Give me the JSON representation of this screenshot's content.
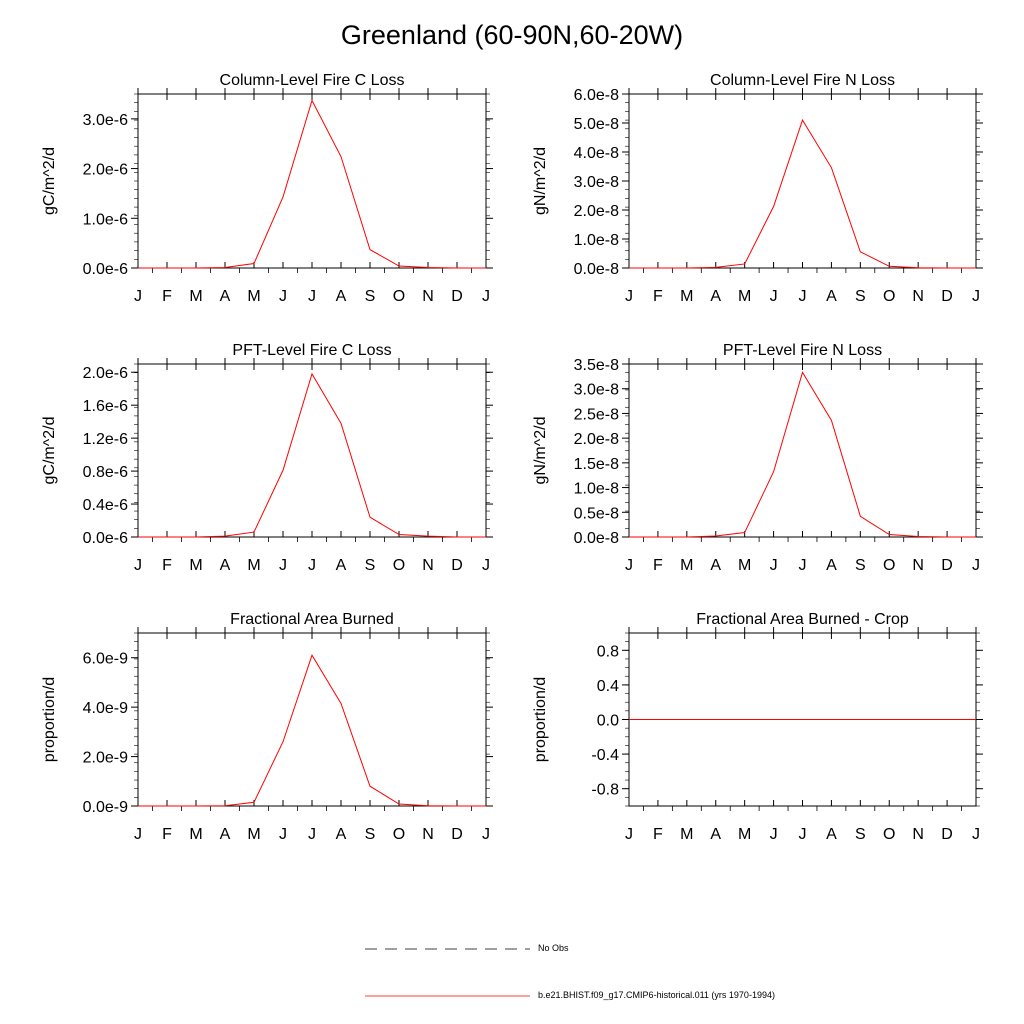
{
  "figure": {
    "title": "Greenland (60-90N,60-20W)",
    "legend": [
      {
        "label": "No Obs",
        "style": "dashed",
        "color": "#000000"
      },
      {
        "label": "b.e21.BHIST.f09_g17.CMIP6-historical.011 (yrs 1970-1994)",
        "style": "solid",
        "color": "#ff0000"
      }
    ]
  },
  "chart_data": [
    {
      "type": "line",
      "title": "Column-Level Fire C Loss",
      "ylabel": "gC/m^2/d",
      "x": [
        "J",
        "F",
        "M",
        "A",
        "M",
        "J",
        "J",
        "A",
        "S",
        "O",
        "N",
        "D",
        "J"
      ],
      "ylim": [
        0,
        3.5e-06
      ],
      "yticks": [
        0,
        1e-06,
        2e-06,
        3e-06
      ],
      "ytick_labels": [
        "0.0e-6",
        "1.0e-6",
        "2.0e-6",
        "3.0e-6"
      ],
      "minor_yticks": [
        5e-07,
        1.5e-06,
        2.5e-06,
        3.5e-06
      ],
      "series": [
        {
          "color": "#ff0000",
          "values": [
            0,
            0,
            0,
            1e-08,
            9e-08,
            1.43e-06,
            3.37e-06,
            2.24e-06,
            3.7e-07,
            4e-08,
            1e-08,
            0,
            0
          ]
        }
      ]
    },
    {
      "type": "line",
      "title": "Column-Level Fire N Loss",
      "ylabel": "gN/m^2/d",
      "x": [
        "J",
        "F",
        "M",
        "A",
        "M",
        "J",
        "J",
        "A",
        "S",
        "O",
        "N",
        "D",
        "J"
      ],
      "ylim": [
        0,
        6e-08
      ],
      "yticks": [
        0,
        1e-08,
        2e-08,
        3e-08,
        4e-08,
        5e-08,
        6e-08
      ],
      "ytick_labels": [
        "0.0e-8",
        "1.0e-8",
        "2.0e-8",
        "3.0e-8",
        "4.0e-8",
        "5.0e-8",
        "6.0e-8"
      ],
      "minor_yticks": [
        5e-09,
        1.5e-08,
        2.5e-08,
        3.5e-08,
        4.5e-08,
        5.5e-08
      ],
      "series": [
        {
          "color": "#ff0000",
          "values": [
            0,
            0,
            0,
            2e-10,
            1.4e-09,
            2.12e-08,
            5.1e-08,
            3.46e-08,
            5.6e-09,
            6e-10,
            1e-10,
            0,
            0
          ]
        }
      ]
    },
    {
      "type": "line",
      "title": "PFT-Level Fire C Loss",
      "ylabel": "gC/m^2/d",
      "x": [
        "J",
        "F",
        "M",
        "A",
        "M",
        "J",
        "J",
        "A",
        "S",
        "O",
        "N",
        "D",
        "J"
      ],
      "ylim": [
        0,
        2.1e-06
      ],
      "yticks": [
        0,
        4e-07,
        8e-07,
        1.2e-06,
        1.6e-06,
        2e-06
      ],
      "ytick_labels": [
        "0.0e-6",
        "0.4e-6",
        "0.8e-6",
        "1.2e-6",
        "1.6e-6",
        "2.0e-6"
      ],
      "minor_yticks": [
        2e-07,
        6e-07,
        1e-06,
        1.4e-06,
        1.8e-06
      ],
      "series": [
        {
          "color": "#ff0000",
          "values": [
            0,
            0,
            0,
            1e-08,
            6e-08,
            8.1e-07,
            1.98e-06,
            1.38e-06,
            2.4e-07,
            3e-08,
            1e-08,
            0,
            0
          ]
        }
      ]
    },
    {
      "type": "line",
      "title": "PFT-Level Fire N Loss",
      "ylabel": "gN/m^2/d",
      "x": [
        "J",
        "F",
        "M",
        "A",
        "M",
        "J",
        "J",
        "A",
        "S",
        "O",
        "N",
        "D",
        "J"
      ],
      "ylim": [
        0,
        3.5e-08
      ],
      "yticks": [
        0,
        5e-09,
        1e-08,
        1.5e-08,
        2e-08,
        2.5e-08,
        3e-08,
        3.5e-08
      ],
      "ytick_labels": [
        "0.0e-8",
        "0.5e-8",
        "1.0e-8",
        "1.5e-8",
        "2.0e-8",
        "2.5e-8",
        "3.0e-8",
        "3.5e-8"
      ],
      "minor_yticks": [],
      "series": [
        {
          "color": "#ff0000",
          "values": [
            0,
            0,
            0,
            2e-10,
            9e-10,
            1.32e-08,
            3.33e-08,
            2.36e-08,
            4.2e-09,
            5e-10,
            1e-10,
            0,
            0
          ]
        }
      ]
    },
    {
      "type": "line",
      "title": "Fractional Area Burned",
      "ylabel": "proportion/d",
      "x": [
        "J",
        "F",
        "M",
        "A",
        "M",
        "J",
        "J",
        "A",
        "S",
        "O",
        "N",
        "D",
        "J"
      ],
      "ylim": [
        0,
        7e-09
      ],
      "yticks": [
        0,
        2e-09,
        4e-09,
        6e-09
      ],
      "ytick_labels": [
        "0.0e-9",
        "2.0e-9",
        "4.0e-9",
        "6.0e-9"
      ],
      "minor_yticks": [
        1e-09,
        3e-09,
        5e-09,
        7e-09
      ],
      "series": [
        {
          "color": "#ff0000",
          "values": [
            0,
            0,
            0,
            1e-11,
            1.5e-10,
            2.6e-09,
            6.1e-09,
            4.15e-09,
            8e-10,
            8e-11,
            1e-11,
            0,
            0
          ]
        }
      ]
    },
    {
      "type": "line",
      "title": "Fractional Area Burned - Crop",
      "ylabel": "proportion/d",
      "x": [
        "J",
        "F",
        "M",
        "A",
        "M",
        "J",
        "J",
        "A",
        "S",
        "O",
        "N",
        "D",
        "J"
      ],
      "ylim": [
        -1,
        1
      ],
      "yticks": [
        -0.8,
        -0.4,
        0.0,
        0.4,
        0.8
      ],
      "ytick_labels": [
        "-0.8",
        "-0.4",
        "0.0",
        "0.4",
        "0.8"
      ],
      "minor_yticks": [
        -1.0,
        -0.6,
        -0.2,
        0.2,
        0.6,
        1.0
      ],
      "series": [
        {
          "color": "#ff0000",
          "values": [
            0,
            0,
            0,
            0,
            0,
            0,
            0,
            0,
            0,
            0,
            0,
            0,
            0
          ]
        }
      ]
    }
  ]
}
